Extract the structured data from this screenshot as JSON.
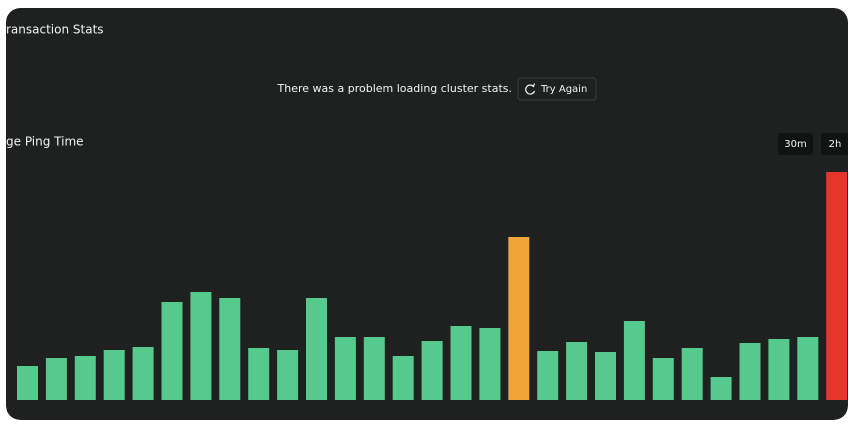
{
  "header": {
    "section_title": "ransaction Stats",
    "error_message": "There was a problem loading cluster stats.",
    "retry_button": "Try Again"
  },
  "chart_data": {
    "type": "bar",
    "title": "ge Ping Time",
    "range_buttons": [
      "30m",
      "2h"
    ],
    "values": [
      34,
      42,
      44,
      50,
      53,
      98,
      108,
      102,
      52,
      50,
      102,
      63,
      63,
      44,
      59,
      74,
      72,
      163,
      49,
      58,
      48,
      79,
      42,
      52,
      23,
      57,
      61,
      63,
      228
    ],
    "colors": [
      "#56c98c",
      "#56c98c",
      "#56c98c",
      "#56c98c",
      "#56c98c",
      "#56c98c",
      "#56c98c",
      "#56c98c",
      "#56c98c",
      "#56c98c",
      "#56c98c",
      "#56c98c",
      "#56c98c",
      "#56c98c",
      "#56c98c",
      "#56c98c",
      "#56c98c",
      "#f0a53a",
      "#56c98c",
      "#56c98c",
      "#56c98c",
      "#56c98c",
      "#56c98c",
      "#56c98c",
      "#56c98c",
      "#56c98c",
      "#56c98c",
      "#56c98c",
      "#e8352b"
    ],
    "ylim": [
      0,
      230
    ]
  }
}
